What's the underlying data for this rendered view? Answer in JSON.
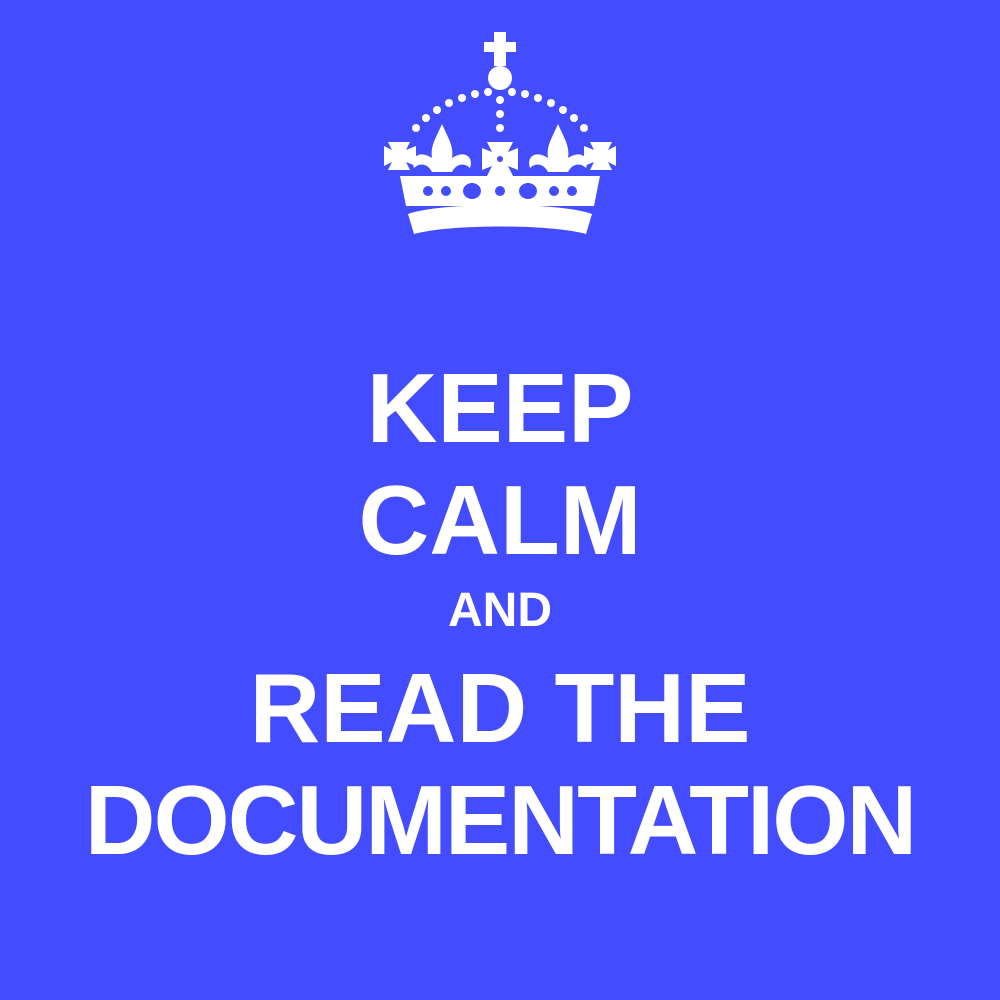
{
  "poster": {
    "background_color": "#434cff",
    "text_color": "#ffffff",
    "crown_icon": "crown-icon",
    "lines": [
      "KEEP",
      "CALM",
      "AND",
      "READ THE",
      "DOCUMENTATION"
    ]
  }
}
